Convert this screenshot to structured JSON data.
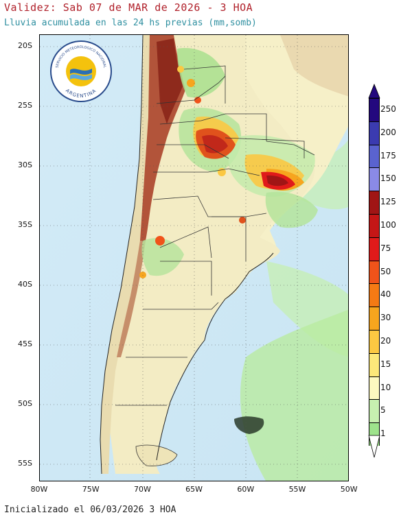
{
  "header": {
    "title": "Validez: Sab 07 de MAR de 2026 - 3 HOA",
    "subtitle": "Lluvia acumulada en las 24 hs previas (mm,somb)"
  },
  "footer": {
    "initialized": "Inicializado el 06/03/2026 3 HOA"
  },
  "logo": {
    "text_top": "SERVICIO METEOROLOGICO NACIONAL",
    "text_bottom": "ARGENTINA"
  },
  "axes": {
    "lat_labels": [
      "20S",
      "25S",
      "30S",
      "35S",
      "40S",
      "45S",
      "50S",
      "55S"
    ],
    "lon_labels": [
      "80W",
      "75W",
      "70W",
      "65W",
      "60W",
      "55W",
      "50W"
    ]
  },
  "legend": {
    "levels": [
      "250",
      "200",
      "175",
      "150",
      "125",
      "100",
      "75",
      "50",
      "40",
      "30",
      "20",
      "15",
      "10",
      "5",
      "1"
    ],
    "colors": [
      "#23087e",
      "#3b3bb0",
      "#5a63cf",
      "#8a8ae6",
      "#a01515",
      "#c41616",
      "#e01a1a",
      "#f0531a",
      "#f57a14",
      "#f7a51e",
      "#fbc842",
      "#fce87a",
      "#fdf9c0",
      "#c7f0b0",
      "#9ee38c"
    ]
  },
  "colors": {
    "ocean": "#cfe8f5",
    "land_outside": "#f6f0c8",
    "andes": "#a3492b",
    "heavy_rain": "#c1281a"
  }
}
